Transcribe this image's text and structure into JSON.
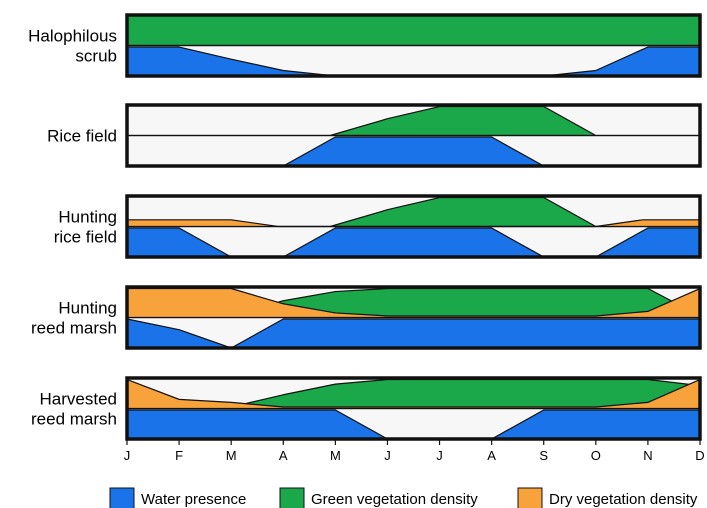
{
  "chart_data": {
    "type": "area",
    "x_axis": {
      "tick_labels": [
        "J",
        "F",
        "M",
        "A",
        "M",
        "J",
        "J",
        "A",
        "S",
        "O",
        "N",
        "D"
      ]
    },
    "colors": {
      "water": "#1a73e8",
      "green": "#1aa84a",
      "dry": "#f7a23b",
      "background": "#f7f7f7",
      "stroke": "#111111"
    },
    "legend": [
      {
        "key": "water",
        "label": "Water presence"
      },
      {
        "key": "green",
        "label": "Green vegetation density"
      },
      {
        "key": "dry",
        "label": "Dry vegetation density"
      }
    ],
    "rows": [
      {
        "label_lines": [
          "Halophilous",
          "scrub"
        ],
        "water": [
          [
            0,
            0.95
          ],
          [
            1,
            0.95
          ],
          [
            2,
            0.55
          ],
          [
            3,
            0.18
          ],
          [
            4,
            0
          ],
          [
            5,
            0
          ],
          [
            6,
            0
          ],
          [
            7,
            0
          ],
          [
            8,
            0
          ],
          [
            9,
            0.18
          ],
          [
            10,
            0.95
          ],
          [
            11,
            0.95
          ]
        ],
        "green": [
          [
            0,
            1
          ],
          [
            11,
            1
          ]
        ],
        "dry": []
      },
      {
        "label_lines": [
          "Rice field"
        ],
        "water": [
          [
            0,
            0
          ],
          [
            3,
            0
          ],
          [
            4,
            0.95
          ],
          [
            5,
            0.95
          ],
          [
            6,
            0.95
          ],
          [
            7,
            0.95
          ],
          [
            8,
            0
          ],
          [
            11,
            0
          ]
        ],
        "green": [
          [
            0,
            0
          ],
          [
            3.9,
            0
          ],
          [
            5,
            0.55
          ],
          [
            6,
            0.95
          ],
          [
            7,
            0.95
          ],
          [
            8,
            0.95
          ],
          [
            9,
            0
          ],
          [
            11,
            0
          ]
        ],
        "dry": []
      },
      {
        "label_lines": [
          "Hunting",
          "rice field"
        ],
        "water": [
          [
            0,
            0.95
          ],
          [
            1,
            0.95
          ],
          [
            2,
            0
          ],
          [
            3,
            0
          ],
          [
            4,
            0.95
          ],
          [
            5,
            0.95
          ],
          [
            6,
            0.95
          ],
          [
            7,
            0.95
          ],
          [
            8,
            0
          ],
          [
            9,
            0
          ],
          [
            10,
            0.95
          ],
          [
            11,
            0.95
          ]
        ],
        "green": [
          [
            0,
            0
          ],
          [
            3.9,
            0
          ],
          [
            5,
            0.55
          ],
          [
            6,
            0.95
          ],
          [
            7,
            0.95
          ],
          [
            8,
            0.95
          ],
          [
            9,
            0
          ],
          [
            11,
            0
          ]
        ],
        "dry": [
          [
            0,
            0.22
          ],
          [
            1,
            0.22
          ],
          [
            2,
            0.22
          ],
          [
            2.9,
            0
          ],
          [
            9,
            0
          ],
          [
            9.9,
            0.22
          ],
          [
            11,
            0.22
          ]
        ]
      },
      {
        "label_lines": [
          "Hunting",
          "reed marsh"
        ],
        "water": [
          [
            0,
            0.95
          ],
          [
            1,
            0.6
          ],
          [
            2,
            0
          ],
          [
            3,
            0.95
          ],
          [
            4,
            0.95
          ],
          [
            5,
            0.95
          ],
          [
            6,
            0.95
          ],
          [
            7,
            0.95
          ],
          [
            8,
            0.95
          ],
          [
            9,
            0.95
          ],
          [
            10,
            0.95
          ],
          [
            11,
            0.95
          ]
        ],
        "green": [
          [
            0,
            0
          ],
          [
            2,
            0.05
          ],
          [
            3,
            0.55
          ],
          [
            4,
            0.85
          ],
          [
            5,
            0.95
          ],
          [
            6,
            0.95
          ],
          [
            7,
            0.95
          ],
          [
            8,
            0.95
          ],
          [
            9,
            0.95
          ],
          [
            10,
            0.95
          ],
          [
            11,
            0.05
          ]
        ],
        "dry": [
          [
            0,
            0.95
          ],
          [
            1,
            0.95
          ],
          [
            2,
            0.95
          ],
          [
            3,
            0.45
          ],
          [
            4,
            0.15
          ],
          [
            5,
            0.05
          ],
          [
            9,
            0.05
          ],
          [
            10,
            0.2
          ],
          [
            11,
            0.95
          ]
        ]
      },
      {
        "label_lines": [
          "Harvested",
          "reed marsh"
        ],
        "water": [
          [
            0,
            0.95
          ],
          [
            1,
            0.95
          ],
          [
            2,
            0.95
          ],
          [
            3,
            0.95
          ],
          [
            4,
            0.95
          ],
          [
            5,
            0
          ],
          [
            6,
            0
          ],
          [
            7,
            0
          ],
          [
            8,
            0.95
          ],
          [
            9,
            0.95
          ],
          [
            10,
            0.95
          ],
          [
            11,
            0.95
          ]
        ],
        "green": [
          [
            0,
            0
          ],
          [
            2,
            0.05
          ],
          [
            3,
            0.45
          ],
          [
            4,
            0.8
          ],
          [
            5,
            0.95
          ],
          [
            6,
            0.95
          ],
          [
            7,
            0.95
          ],
          [
            8,
            0.95
          ],
          [
            9,
            0.95
          ],
          [
            10,
            0.95
          ],
          [
            11,
            0.75
          ]
        ],
        "dry": [
          [
            0,
            0.95
          ],
          [
            1,
            0.3
          ],
          [
            2,
            0.2
          ],
          [
            3,
            0.05
          ],
          [
            9,
            0.05
          ],
          [
            10,
            0.2
          ],
          [
            11,
            0.95
          ]
        ]
      }
    ]
  }
}
